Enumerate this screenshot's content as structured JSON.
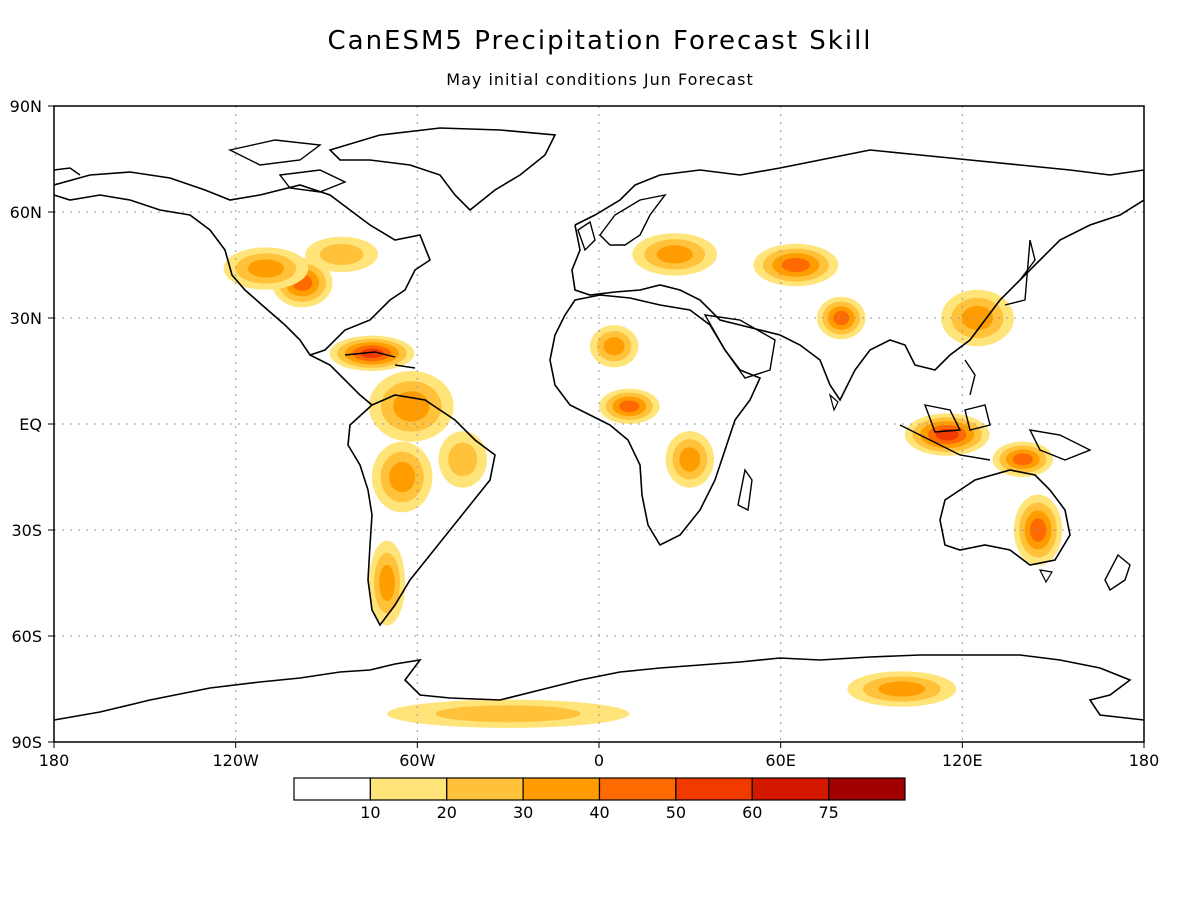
{
  "title": "CanESM5 Precipitation Forecast Skill",
  "subtitle": "May initial conditions  Jun Forecast",
  "lat_axis": {
    "labels": [
      "90N",
      "60N",
      "30N",
      "EQ",
      "30S",
      "60S",
      "90S"
    ],
    "values": [
      90,
      60,
      30,
      0,
      -30,
      -60,
      -90
    ]
  },
  "lon_axis": {
    "labels": [
      "180",
      "120W",
      "60W",
      "0",
      "60E",
      "120E",
      "180"
    ],
    "values": [
      -180,
      -120,
      -60,
      0,
      60,
      120,
      180
    ]
  },
  "colorbar": {
    "colors": [
      "#ffffff",
      "#ffe47a",
      "#ffc23a",
      "#ff9d00",
      "#ff6a00",
      "#f03a00",
      "#d41800",
      "#a00000"
    ],
    "labels": [
      "10",
      "20",
      "30",
      "40",
      "50",
      "60",
      "75"
    ]
  },
  "skill_regions": [
    {
      "lon": -98,
      "lat": 40,
      "level": 4,
      "rx": 10,
      "ry": 7
    },
    {
      "lon": -110,
      "lat": 44,
      "level": 3,
      "rx": 14,
      "ry": 6
    },
    {
      "lon": -85,
      "lat": 48,
      "level": 2,
      "rx": 12,
      "ry": 5
    },
    {
      "lon": -75,
      "lat": 20,
      "level": 5,
      "rx": 14,
      "ry": 5
    },
    {
      "lon": -62,
      "lat": 5,
      "level": 3,
      "rx": 14,
      "ry": 10
    },
    {
      "lon": -65,
      "lat": -15,
      "level": 3,
      "rx": 10,
      "ry": 10
    },
    {
      "lon": -45,
      "lat": -10,
      "level": 2,
      "rx": 8,
      "ry": 8
    },
    {
      "lon": -70,
      "lat": -45,
      "level": 3,
      "rx": 6,
      "ry": 12
    },
    {
      "lon": 5,
      "lat": 22,
      "level": 3,
      "rx": 8,
      "ry": 6
    },
    {
      "lon": 10,
      "lat": 5,
      "level": 4,
      "rx": 10,
      "ry": 5
    },
    {
      "lon": 30,
      "lat": -10,
      "level": 3,
      "rx": 8,
      "ry": 8
    },
    {
      "lon": 25,
      "lat": 48,
      "level": 3,
      "rx": 14,
      "ry": 6
    },
    {
      "lon": 65,
      "lat": 45,
      "level": 4,
      "rx": 14,
      "ry": 6
    },
    {
      "lon": 80,
      "lat": 30,
      "level": 4,
      "rx": 8,
      "ry": 6
    },
    {
      "lon": 125,
      "lat": 30,
      "level": 3,
      "rx": 12,
      "ry": 8
    },
    {
      "lon": 115,
      "lat": -3,
      "level": 5,
      "rx": 14,
      "ry": 6
    },
    {
      "lon": 140,
      "lat": -10,
      "level": 4,
      "rx": 10,
      "ry": 5
    },
    {
      "lon": 145,
      "lat": -30,
      "level": 4,
      "rx": 8,
      "ry": 10
    },
    {
      "lon": 100,
      "lat": -75,
      "level": 3,
      "rx": 18,
      "ry": 5
    },
    {
      "lon": -30,
      "lat": -82,
      "level": 2,
      "rx": 40,
      "ry": 4
    }
  ]
}
